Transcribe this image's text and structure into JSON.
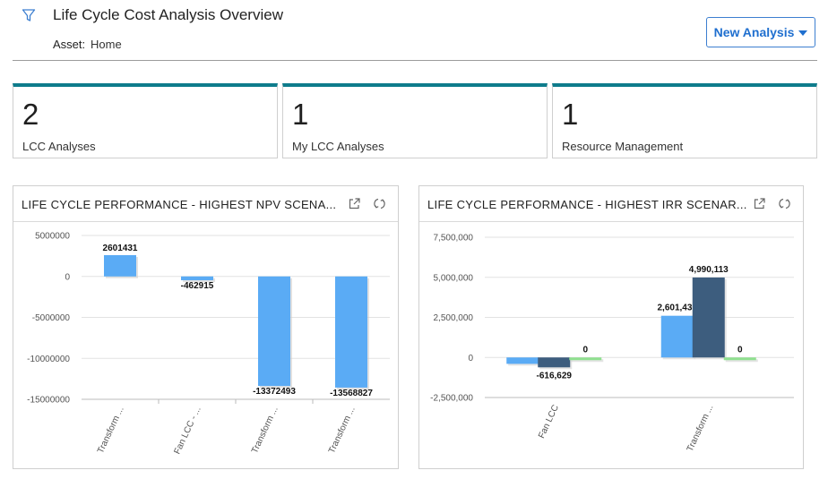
{
  "header": {
    "title": "Life Cycle Cost Analysis Overview",
    "asset_label": "Asset:",
    "asset_value": "Home",
    "new_analysis_label": "New Analysis"
  },
  "kpis": [
    {
      "value": "2",
      "label": "LCC Analyses"
    },
    {
      "value": "1",
      "label": "My LCC Analyses"
    },
    {
      "value": "1",
      "label": "Resource Management"
    }
  ],
  "panels": [
    {
      "title": "LIFE CYCLE PERFORMANCE - HIGHEST NPV SCENA..."
    },
    {
      "title": "LIFE CYCLE PERFORMANCE - HIGHEST IRR SCENAR..."
    }
  ],
  "icons": {
    "filter": "filter-icon",
    "expand": "open-external-icon",
    "refresh": "refresh-icon",
    "dropdown": "caret-down-icon"
  },
  "colors": {
    "accent": "#0e7c8c",
    "button": "#1f6fcf",
    "bar_blue": "#5aabf5",
    "bar_dark": "#3d5d7e",
    "bar_green": "#8fe08f"
  },
  "chart_data": [
    {
      "type": "bar",
      "categories": [
        "Transform ...",
        "Fan LCC - ...",
        "Transform ...",
        "Transform ..."
      ],
      "values": [
        2601431,
        -462915,
        -13372493,
        -13568827
      ],
      "data_labels": [
        "2601431",
        "-462915",
        "-13372493",
        "-13568827"
      ],
      "ylim": [
        -15000000,
        5000000
      ],
      "yticks": [
        5000000,
        0,
        -5000000,
        -10000000,
        -15000000
      ],
      "ytick_labels": [
        "5000000",
        "0",
        "-5000000",
        "-10000000",
        "-15000000"
      ],
      "grid": true
    },
    {
      "type": "bar",
      "categories": [
        "Fan LCC",
        "Transform ..."
      ],
      "series": [
        {
          "values": [
            -400000,
            2601431
          ],
          "color": "#5aabf5"
        },
        {
          "values": [
            -616629,
            4990113
          ],
          "color": "#3d5d7e"
        },
        {
          "values": [
            0,
            0
          ],
          "color": "#8fe08f"
        }
      ],
      "data_labels": [
        [
          null,
          "2,601,431"
        ],
        [
          "-616,629",
          "4,990,113"
        ],
        [
          "0",
          "0"
        ]
      ],
      "ylim": [
        -2500000,
        7500000
      ],
      "yticks": [
        7500000,
        5000000,
        2500000,
        0,
        -2500000
      ],
      "ytick_labels": [
        "7,500,000",
        "5,000,000",
        "2,500,000",
        "0",
        "-2,500,000"
      ],
      "grid": true
    }
  ]
}
